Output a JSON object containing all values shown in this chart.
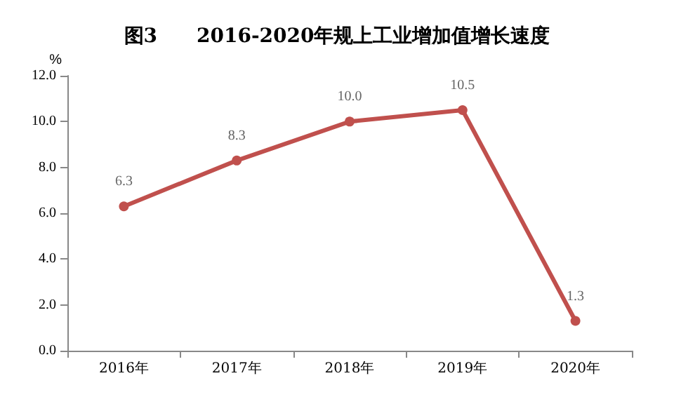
{
  "chart_data": {
    "type": "line",
    "title": "图3　　2016-2020年规上工业增加值增长速度",
    "ylabel": "%",
    "categories": [
      "2016年",
      "2017年",
      "2018年",
      "2019年",
      "2020年"
    ],
    "series": [
      {
        "color": "#c0504d",
        "values": [
          6.3,
          8.3,
          10.0,
          10.5,
          1.3
        ]
      }
    ],
    "ylim": [
      0,
      12
    ],
    "yticks": [
      {
        "value": 0,
        "label": "0.0"
      },
      {
        "value": 2,
        "label": "2.0"
      },
      {
        "value": 4,
        "label": "4.0"
      },
      {
        "value": 6,
        "label": "6.0"
      },
      {
        "value": 8,
        "label": "8.0"
      },
      {
        "value": 10,
        "label": "10.0"
      },
      {
        "value": 12,
        "label": "12.0"
      }
    ],
    "value_labels": [
      "6.3",
      "8.3",
      "10.0",
      "10.5",
      "1.3"
    ],
    "grid": false,
    "marker": "circle",
    "line_style": "solid"
  }
}
